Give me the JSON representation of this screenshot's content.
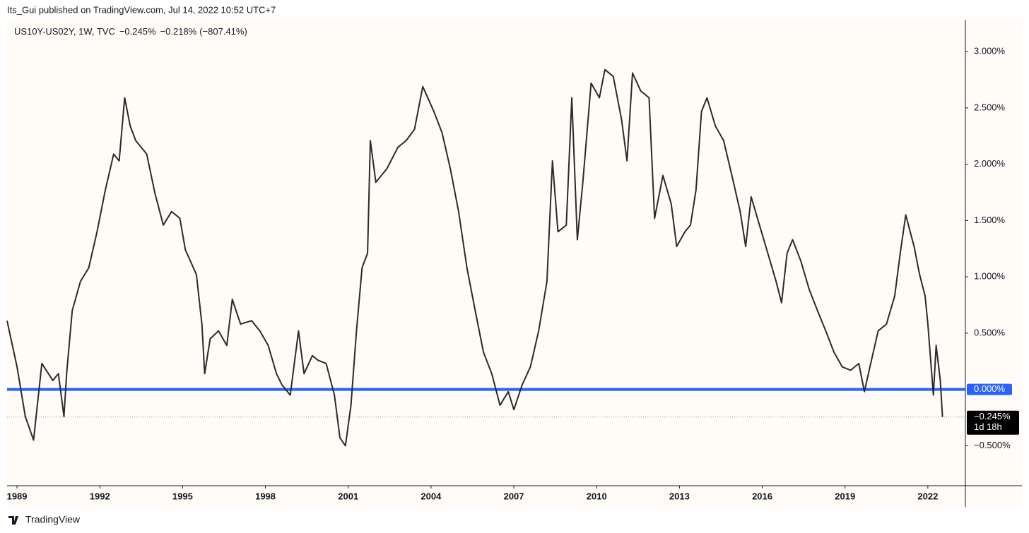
{
  "chart_data": {
    "type": "line",
    "published": "Its_Gui published on TradingView.com, Jul 14, 2022 10:52 UTC+7",
    "symbol": "US10Y-US02Y, 1W, TVC",
    "last": "−0.245%",
    "change": "−0.218%",
    "change_pct": "(−807.41%)",
    "brand": "TradingView",
    "x": [
      1988.64,
      1989.0,
      1989.3,
      1989.6,
      1989.9,
      1990.3,
      1990.5,
      1990.7,
      1990.8,
      1991.0,
      1991.3,
      1991.6,
      1991.9,
      1992.2,
      1992.5,
      1992.7,
      1992.9,
      1993.1,
      1993.3,
      1993.7,
      1994.0,
      1994.3,
      1994.6,
      1994.9,
      1995.1,
      1995.5,
      1995.7,
      1995.8,
      1996.0,
      1996.3,
      1996.6,
      1996.8,
      1997.1,
      1997.5,
      1997.8,
      1998.1,
      1998.4,
      1998.6,
      1998.9,
      1999.2,
      1999.4,
      1999.7,
      1999.9,
      2000.2,
      2000.5,
      2000.7,
      2000.9,
      2001.1,
      2001.3,
      2001.5,
      2001.7,
      2001.8,
      2002.0,
      2002.4,
      2002.8,
      2003.1,
      2003.4,
      2003.7,
      2004.1,
      2004.4,
      2004.7,
      2005.0,
      2005.3,
      2005.6,
      2005.9,
      2006.2,
      2006.5,
      2006.8,
      2007.0,
      2007.3,
      2007.6,
      2007.9,
      2008.2,
      2008.4,
      2008.6,
      2008.9,
      2009.1,
      2009.3,
      2009.5,
      2009.8,
      2010.1,
      2010.3,
      2010.6,
      2010.9,
      2011.1,
      2011.3,
      2011.6,
      2011.9,
      2012.1,
      2012.4,
      2012.7,
      2012.9,
      2013.2,
      2013.4,
      2013.6,
      2013.8,
      2014.0,
      2014.3,
      2014.6,
      2014.9,
      2015.2,
      2015.4,
      2015.6,
      2015.9,
      2016.2,
      2016.5,
      2016.7,
      2016.9,
      2017.1,
      2017.4,
      2017.7,
      2018.0,
      2018.3,
      2018.6,
      2018.9,
      2019.2,
      2019.5,
      2019.7,
      2019.9,
      2020.2,
      2020.5,
      2020.8,
      2021.0,
      2021.2,
      2021.5,
      2021.7,
      2021.9,
      2022.0,
      2022.2,
      2022.3,
      2022.45,
      2022.53
    ],
    "values": [
      0.61,
      0.2,
      -0.24,
      -0.45,
      0.23,
      0.08,
      0.14,
      -0.24,
      0.15,
      0.7,
      0.96,
      1.08,
      1.4,
      1.77,
      2.09,
      2.03,
      2.59,
      2.34,
      2.21,
      2.09,
      1.74,
      1.46,
      1.58,
      1.52,
      1.24,
      1.02,
      0.58,
      0.14,
      0.45,
      0.52,
      0.39,
      0.8,
      0.58,
      0.61,
      0.52,
      0.39,
      0.14,
      0.04,
      -0.05,
      0.52,
      0.14,
      0.3,
      0.26,
      0.23,
      -0.05,
      -0.43,
      -0.5,
      -0.14,
      0.52,
      1.08,
      1.21,
      2.21,
      1.84,
      1.96,
      2.15,
      2.21,
      2.31,
      2.69,
      2.47,
      2.28,
      1.96,
      1.58,
      1.08,
      0.7,
      0.33,
      0.14,
      -0.14,
      -0.02,
      -0.18,
      0.04,
      0.2,
      0.52,
      0.96,
      2.03,
      1.4,
      1.46,
      2.59,
      1.33,
      1.84,
      2.72,
      2.59,
      2.84,
      2.78,
      2.4,
      2.03,
      2.81,
      2.65,
      2.59,
      1.52,
      1.9,
      1.65,
      1.27,
      1.4,
      1.46,
      1.77,
      2.47,
      2.59,
      2.34,
      2.21,
      1.9,
      1.58,
      1.27,
      1.71,
      1.46,
      1.21,
      0.96,
      0.77,
      1.21,
      1.33,
      1.14,
      0.89,
      0.7,
      0.52,
      0.33,
      0.2,
      0.17,
      0.23,
      -0.02,
      0.2,
      0.52,
      0.58,
      0.83,
      1.21,
      1.55,
      1.27,
      1.02,
      0.83,
      0.58,
      -0.05,
      0.39,
      0.08,
      -0.245
    ],
    "color": "#2a2a2a",
    "xlim": [
      1988.64,
      2023.36
    ],
    "xticks": [
      1989,
      1992,
      1995,
      1998,
      2001,
      2004,
      2007,
      2010,
      2013,
      2016,
      2019,
      2022
    ],
    "ylim": [
      -0.855,
      3.283
    ],
    "yticks": [
      {
        "value": -0.5,
        "label": "−0.500%"
      },
      {
        "value": 0.5,
        "label": "0.500%"
      },
      {
        "value": 1,
        "label": "1.000%"
      },
      {
        "value": 1.5,
        "label": "1.500%"
      },
      {
        "value": 2,
        "label": "2.000%"
      },
      {
        "value": 2.5,
        "label": "2.500%"
      },
      {
        "value": 3,
        "label": "3.000%"
      }
    ],
    "hline": {
      "value": 0,
      "label": "0.000%",
      "color": "#2962ff"
    },
    "last_value": {
      "value": -0.245,
      "label": "−0.245%",
      "countdown": "1d 18h"
    }
  }
}
